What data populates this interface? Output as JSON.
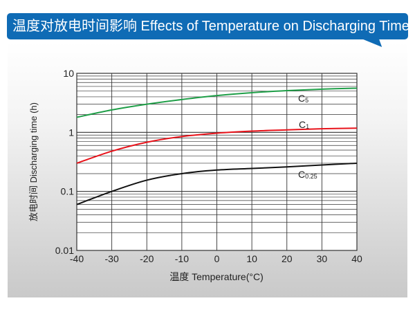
{
  "header": {
    "title": "温度对放电时间影响 Effects of Temperature on Discharging Time"
  },
  "colors": {
    "title_bar": "#0f6bb5",
    "C5": "#1e9e47",
    "C1": "#e8121a",
    "C0.25": "#111111"
  },
  "chart_data": {
    "type": "line",
    "title": "温度对放电时间影响 Effects of Temperature on Discharging Time",
    "xlabel": "温度 Temperature(°C)",
    "ylabel": "放电时间 Discharging time (h)",
    "xlim": [
      -40,
      40
    ],
    "ylim": [
      0.01,
      10
    ],
    "yscale": "log",
    "grid": true,
    "x_ticks": [
      "-40",
      "-30",
      "-20",
      "-10",
      "0",
      "10",
      "20",
      "30",
      "40"
    ],
    "y_ticks": [
      "0.01",
      "0.1",
      "1",
      "10"
    ],
    "x": [
      -40,
      -30,
      -20,
      -10,
      0,
      10,
      20,
      30,
      40
    ],
    "series": [
      {
        "name": "C5",
        "label_main": "C",
        "label_sub": "5",
        "color": "#1e9e47",
        "values": [
          1.8,
          2.4,
          3.0,
          3.6,
          4.2,
          4.7,
          5.1,
          5.4,
          5.6
        ]
      },
      {
        "name": "C1",
        "label_main": "C",
        "label_sub": "1",
        "color": "#e8121a",
        "values": [
          0.3,
          0.48,
          0.68,
          0.85,
          0.97,
          1.05,
          1.1,
          1.15,
          1.18
        ]
      },
      {
        "name": "C0.25",
        "label_main": "C",
        "label_sub": "0.25",
        "color": "#111111",
        "values": [
          0.06,
          0.1,
          0.155,
          0.2,
          0.23,
          0.245,
          0.26,
          0.28,
          0.3
        ]
      }
    ]
  }
}
